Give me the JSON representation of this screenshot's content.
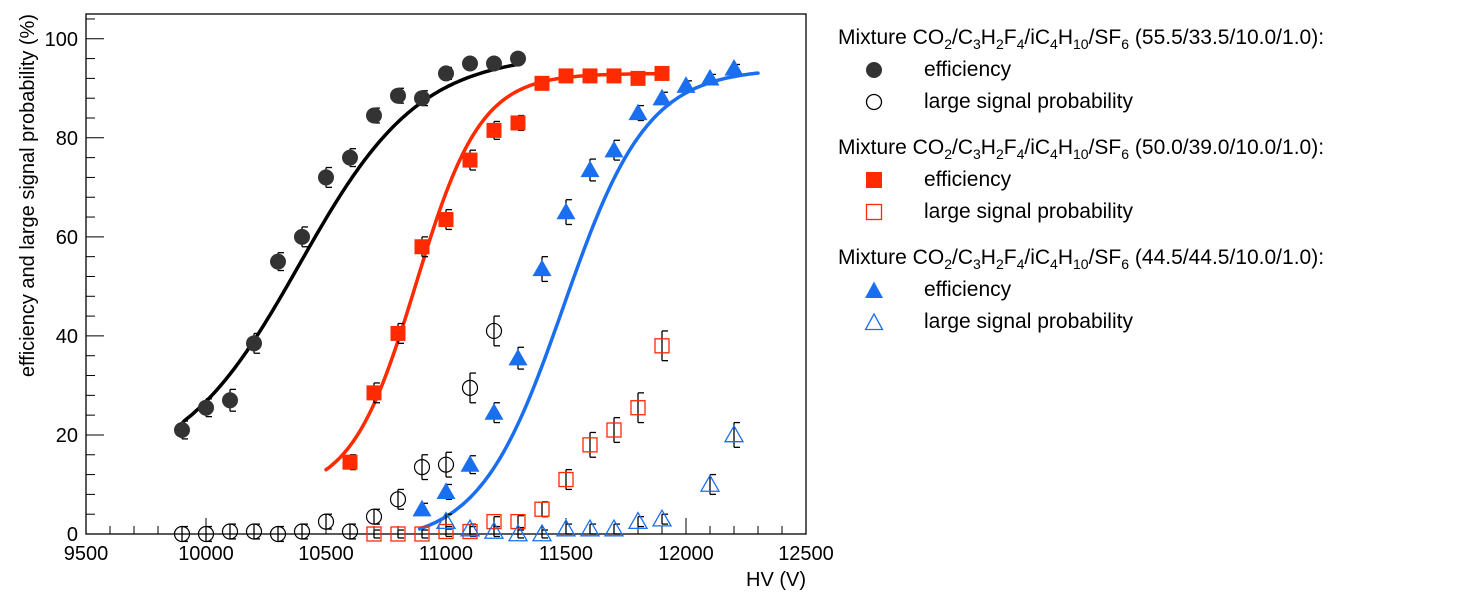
{
  "chart_data": {
    "type": "scatter",
    "xlabel": "HV (V)",
    "ylabel": "efficiency and large signal probability (%)",
    "xlim": [
      9500,
      12500
    ],
    "ylim": [
      0,
      105
    ],
    "xticks": [
      9500,
      10000,
      10500,
      11000,
      11500,
      12000,
      12500
    ],
    "yticks": [
      0,
      20,
      40,
      60,
      80,
      100
    ],
    "groups": [
      {
        "mixture_prefix": "Mixture CO",
        "mixture_ratio": "(55.5/33.5/10.0/1.0):",
        "color": "#333333",
        "marker": "circle",
        "efficiency_label": "efficiency",
        "large_label": "large signal probability",
        "efficiency": {
          "x": [
            9900,
            10000,
            10100,
            10200,
            10300,
            10400,
            10500,
            10600,
            10700,
            10800,
            10900,
            11000,
            11100,
            11200,
            11300
          ],
          "y": [
            21,
            25.5,
            27,
            38.5,
            55,
            60,
            72,
            76,
            84.5,
            88.5,
            88,
            93,
            95,
            95,
            96
          ],
          "err": [
            1.8,
            1.8,
            2.2,
            2.0,
            1.8,
            2.0,
            2.0,
            1.8,
            1.5,
            1.5,
            1.5,
            1.2,
            1.0,
            1.0,
            0.8
          ]
        },
        "large": {
          "x": [
            9900,
            10000,
            10100,
            10200,
            10300,
            10400,
            10500,
            10600,
            10700,
            10800,
            10900,
            11000,
            11100,
            11200
          ],
          "y": [
            0,
            0,
            0.5,
            0.5,
            0,
            0.5,
            2.5,
            0.5,
            3.5,
            7,
            13.5,
            14,
            29.5,
            41
          ],
          "err": [
            1.5,
            1.5,
            1.5,
            1.5,
            1.5,
            1.5,
            1.5,
            1.5,
            1.5,
            2.0,
            2.5,
            2.5,
            3.0,
            3.0
          ]
        },
        "fit": {
          "mid": 10390,
          "width": 250,
          "lo": 12,
          "hi": 97,
          "xmin": 9910,
          "xmax": 11300
        }
      },
      {
        "mixture_prefix": "Mixture CO",
        "mixture_ratio": "(50.0/39.0/10.0/1.0):",
        "color": "#ff2a00",
        "marker": "square",
        "efficiency_label": "efficiency",
        "large_label": "large signal probability",
        "efficiency": {
          "x": [
            10600,
            10700,
            10800,
            10900,
            11000,
            11100,
            11200,
            11300,
            11400,
            11500,
            11600,
            11700,
            11800,
            11900
          ],
          "y": [
            14.5,
            28.5,
            40.5,
            58,
            63.5,
            75.5,
            81.5,
            83,
            91,
            92.5,
            92.5,
            92.5,
            92,
            93
          ],
          "err": [
            1.5,
            2.0,
            2.0,
            2.0,
            2.0,
            2.0,
            1.8,
            1.5,
            1.2,
            1.2,
            1.0,
            1.0,
            1.0,
            1.0
          ]
        },
        "large": {
          "x": [
            10700,
            10800,
            10900,
            11000,
            11100,
            11200,
            11300,
            11400,
            11500,
            11600,
            11700,
            11800,
            11900
          ],
          "y": [
            0,
            0,
            0,
            0.5,
            0.5,
            2.5,
            2.5,
            5,
            11,
            18,
            21,
            25.5,
            38
          ],
          "err": [
            0.8,
            0.8,
            0.8,
            1.0,
            1.0,
            1.0,
            1.2,
            1.5,
            2.0,
            2.5,
            2.5,
            3.0,
            3.0
          ]
        },
        "fit": {
          "mid": 10875,
          "width": 135,
          "lo": 8,
          "hi": 93,
          "xmin": 10500,
          "xmax": 11900
        }
      },
      {
        "mixture_prefix": "Mixture CO",
        "mixture_ratio": "(44.5/44.5/10.0/1.0):",
        "color": "#1a6ef0",
        "marker": "triangle",
        "efficiency_label": "efficiency",
        "large_label": "large signal probability",
        "efficiency": {
          "x": [
            10900,
            11000,
            11100,
            11200,
            11300,
            11400,
            11500,
            11600,
            11700,
            11800,
            11900,
            12000,
            12100,
            12200
          ],
          "y": [
            5,
            8.5,
            14,
            24.5,
            35.5,
            53.5,
            65,
            73.5,
            77.5,
            85,
            88,
            90.5,
            92,
            94
          ],
          "err": [
            1.2,
            1.5,
            1.8,
            2.0,
            2.2,
            2.5,
            2.5,
            2.2,
            2.0,
            1.5,
            1.2,
            1.0,
            0.8,
            0.8
          ]
        },
        "large": {
          "x": [
            11000,
            11100,
            11200,
            11300,
            11400,
            11500,
            11600,
            11700,
            11800,
            11900,
            12100,
            12200
          ],
          "y": [
            2.5,
            1,
            0.5,
            0,
            0,
            1,
            1,
            1,
            2.5,
            3,
            10,
            20
          ],
          "err": [
            1.5,
            1.0,
            1.0,
            0.8,
            0.8,
            1.0,
            1.0,
            1.0,
            1.0,
            1.0,
            2.0,
            2.5
          ]
        },
        "fit": {
          "mid": 11490,
          "width": 175,
          "lo": -2,
          "hi": 94,
          "xmin": 10890,
          "xmax": 12300
        }
      }
    ]
  }
}
